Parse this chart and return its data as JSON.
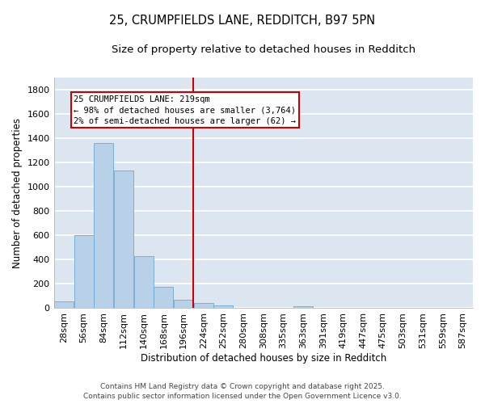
{
  "title1": "25, CRUMPFIELDS LANE, REDDITCH, B97 5PN",
  "title2": "Size of property relative to detached houses in Redditch",
  "xlabel": "Distribution of detached houses by size in Redditch",
  "ylabel": "Number of detached properties",
  "bin_labels": [
    "28sqm",
    "56sqm",
    "84sqm",
    "112sqm",
    "140sqm",
    "168sqm",
    "196sqm",
    "224sqm",
    "252sqm",
    "280sqm",
    "308sqm",
    "335sqm",
    "363sqm",
    "391sqm",
    "419sqm",
    "447sqm",
    "475sqm",
    "503sqm",
    "531sqm",
    "559sqm",
    "587sqm"
  ],
  "bar_values": [
    55,
    600,
    1360,
    1130,
    430,
    175,
    70,
    40,
    20,
    0,
    0,
    0,
    18,
    0,
    0,
    0,
    0,
    0,
    0,
    0,
    0
  ],
  "bar_color": "#b8d0e8",
  "bar_edge_color": "#6aaad4",
  "plot_bg_color": "#dce6f0",
  "fig_bg_color": "#ffffff",
  "grid_color": "#ffffff",
  "vline_color": "#cc0000",
  "annotation_text": "25 CRUMPFIELDS LANE: 219sqm\n← 98% of detached houses are smaller (3,764)\n2% of semi-detached houses are larger (62) →",
  "annotation_box_color": "#cc0000",
  "footer1": "Contains HM Land Registry data © Crown copyright and database right 2025.",
  "footer2": "Contains public sector information licensed under the Open Government Licence v3.0.",
  "ylim": [
    0,
    1900
  ],
  "yticks": [
    0,
    200,
    400,
    600,
    800,
    1000,
    1200,
    1400,
    1600,
    1800
  ],
  "title1_fontsize": 10.5,
  "title2_fontsize": 9.5,
  "axis_label_fontsize": 8.5,
  "tick_fontsize": 8,
  "footer_fontsize": 6.5,
  "annotation_fontsize": 7.5,
  "vline_bin_index": 7
}
